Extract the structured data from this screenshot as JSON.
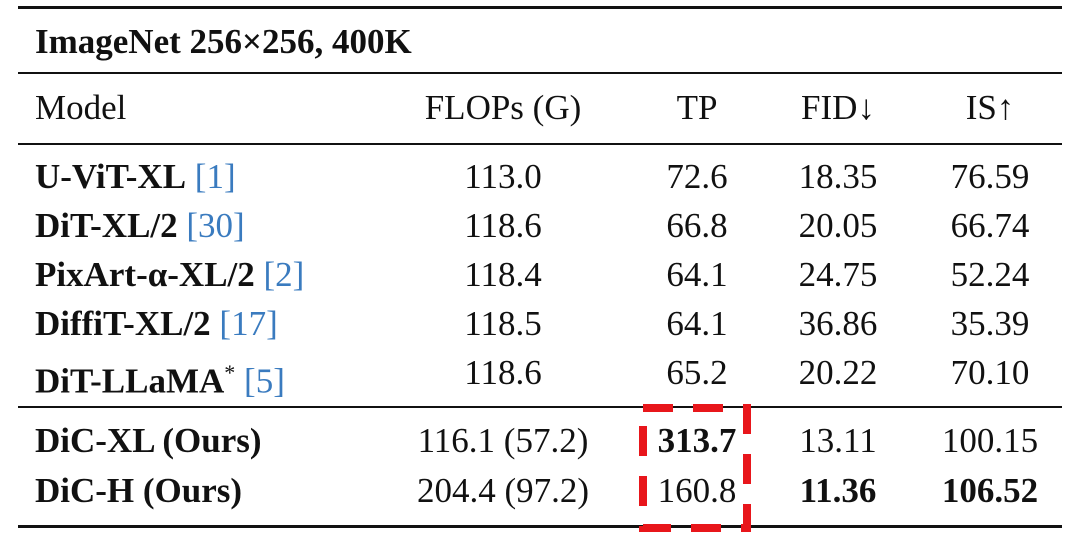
{
  "table": {
    "title": "ImageNet 256×256, 400K",
    "header": [
      "Model",
      "FLOPs (G)",
      "TP",
      "FID↓",
      "IS↑"
    ],
    "groups": [
      {
        "rows": [
          {
            "model": "U-ViT-XL",
            "ref": "[1]",
            "cells": [
              "113.0",
              "72.6",
              "18.35",
              "76.59"
            ],
            "bold": []
          },
          {
            "model": "DiT-XL/2",
            "ref": "[30]",
            "cells": [
              "118.6",
              "66.8",
              "20.05",
              "66.74"
            ],
            "bold": []
          },
          {
            "model": "PixArt-α-XL/2",
            "ref": "[2]",
            "cells": [
              "118.4",
              "64.1",
              "24.75",
              "52.24"
            ],
            "bold": []
          },
          {
            "model": "DiffiT-XL/2",
            "ref": "[17]",
            "cells": [
              "118.5",
              "64.1",
              "36.86",
              "35.39"
            ],
            "bold": []
          },
          {
            "model": "DiT-LLaMA",
            "mark": "*",
            "ref": "[5]",
            "cells": [
              "118.6",
              "65.2",
              "20.22",
              "70.10"
            ],
            "bold": []
          }
        ]
      },
      {
        "rows": [
          {
            "model": "DiC-XL (Ours)",
            "cells": [
              "116.1 (57.2)",
              "313.7",
              "13.11",
              "100.15"
            ],
            "bold": [
              1
            ]
          },
          {
            "model": "DiC-H (Ours)",
            "cells": [
              "204.4 (97.2)",
              "160.8",
              "11.36",
              "106.52"
            ],
            "bold": [
              2,
              3
            ]
          }
        ]
      }
    ]
  }
}
